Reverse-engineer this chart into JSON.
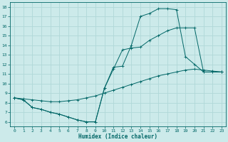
{
  "xlabel": "Humidex (Indice chaleur)",
  "bg_color": "#cceaea",
  "grid_color": "#b0d8d8",
  "line_color": "#006666",
  "xlim": [
    -0.5,
    23.5
  ],
  "ylim": [
    5.5,
    18.5
  ],
  "xticks": [
    0,
    1,
    2,
    3,
    4,
    5,
    6,
    7,
    8,
    9,
    10,
    11,
    12,
    13,
    14,
    15,
    16,
    17,
    18,
    19,
    20,
    21,
    22,
    23
  ],
  "yticks": [
    6,
    7,
    8,
    9,
    10,
    11,
    12,
    13,
    14,
    15,
    16,
    17,
    18
  ],
  "line1_x": [
    0,
    1,
    2,
    3,
    4,
    5,
    6,
    7,
    8,
    9,
    10,
    11,
    12,
    13,
    14,
    15,
    16,
    17,
    18,
    19,
    20,
    21,
    22,
    23
  ],
  "line1_y": [
    8.5,
    8.3,
    7.5,
    7.3,
    7.0,
    6.8,
    6.5,
    6.2,
    6.0,
    6.0,
    9.5,
    11.7,
    11.8,
    14.0,
    17.0,
    17.3,
    17.8,
    17.8,
    17.7,
    12.8,
    12.0,
    11.2,
    11.2,
    11.2
  ],
  "line2_x": [
    0,
    1,
    2,
    3,
    4,
    5,
    6,
    7,
    8,
    9,
    10,
    11,
    12,
    13,
    14,
    15,
    16,
    17,
    18,
    19,
    20,
    21,
    22,
    23
  ],
  "line2_y": [
    8.5,
    8.3,
    7.5,
    7.3,
    7.0,
    6.8,
    6.5,
    6.2,
    6.0,
    6.0,
    9.5,
    11.5,
    13.5,
    13.7,
    13.8,
    14.5,
    15.0,
    15.5,
    15.8,
    15.8,
    15.8,
    11.2,
    11.2,
    11.2
  ],
  "line3_x": [
    0,
    1,
    2,
    3,
    4,
    5,
    6,
    7,
    8,
    9,
    10,
    11,
    12,
    13,
    14,
    15,
    16,
    17,
    18,
    19,
    20,
    21,
    22,
    23
  ],
  "line3_y": [
    8.5,
    8.4,
    8.3,
    8.2,
    8.1,
    8.1,
    8.2,
    8.3,
    8.5,
    8.7,
    9.0,
    9.3,
    9.6,
    9.9,
    10.2,
    10.5,
    10.8,
    11.0,
    11.2,
    11.4,
    11.5,
    11.4,
    11.3,
    11.2
  ],
  "xlabel_fontsize": 5.5,
  "tick_fontsize": 4.5,
  "linewidth": 0.7,
  "markersize": 1.5
}
